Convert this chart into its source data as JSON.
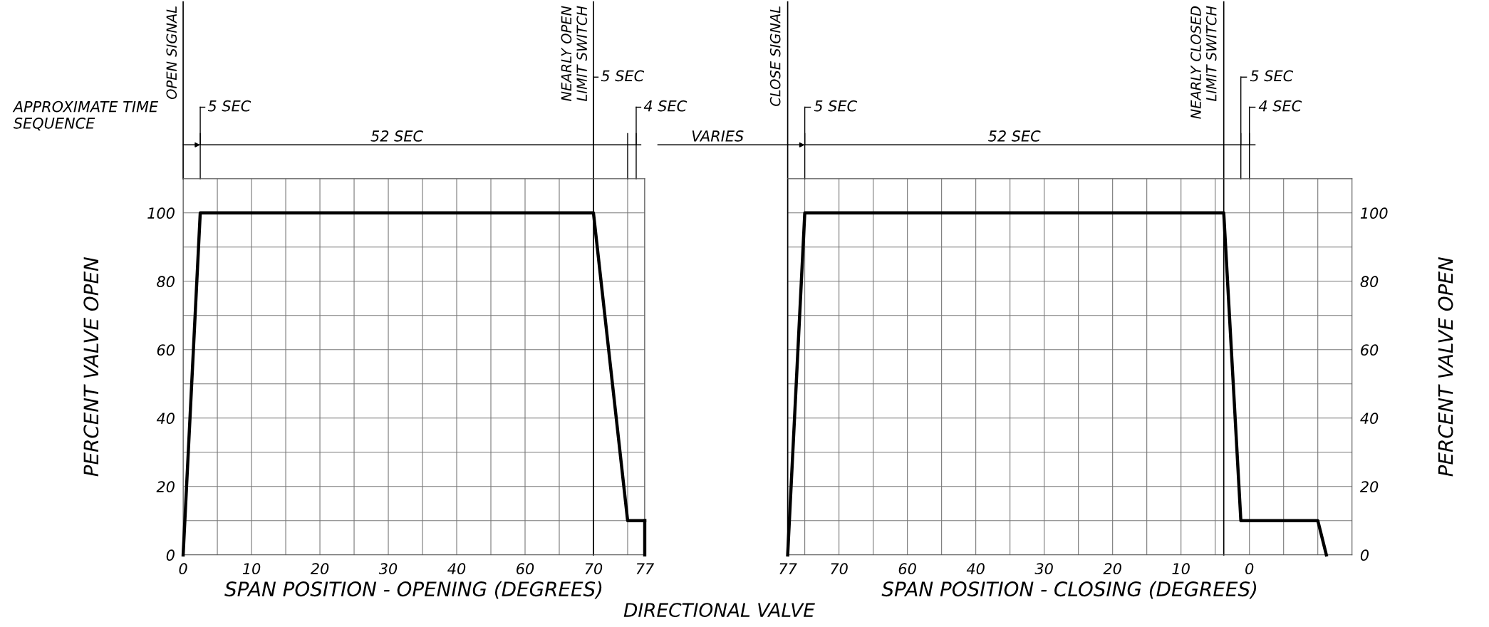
{
  "chart_data": [
    {
      "type": "line",
      "xlabel": "SPAN POSITION - OPENING (DEGREES)",
      "ylabel": "PERCENT VALVE OPEN",
      "grid": true,
      "legend": false,
      "marker": "none",
      "line_style": "solid",
      "categories": [
        "0",
        null,
        null,
        null,
        null,
        null,
        null,
        null,
        "10",
        null,
        null,
        null,
        null,
        null,
        null,
        null,
        "20",
        null,
        null,
        null,
        null,
        null,
        null,
        null,
        "30",
        null,
        null,
        null,
        null,
        null,
        null,
        null,
        "40",
        null,
        null,
        null,
        null,
        null,
        null,
        null,
        "60",
        null,
        null,
        null,
        null,
        null,
        null,
        null,
        "70",
        null,
        null,
        null,
        null,
        null,
        "77"
      ],
      "ylim": [
        0,
        110
      ],
      "yticks": [
        0,
        {
          "value": 10,
          "label": null
        },
        20,
        {
          "value": 30,
          "label": null
        },
        40,
        {
          "value": 50,
          "label": null
        },
        60,
        {
          "value": 70,
          "label": null
        },
        80,
        {
          "value": 90,
          "label": null
        },
        100,
        {
          "value": 110,
          "label": null
        }
      ],
      "series": [
        {
          "color": "#000000",
          "values": [
            0,
            50,
            100,
            100,
            100,
            100,
            100,
            100,
            100,
            100,
            100,
            100,
            100,
            100,
            100,
            100,
            100,
            100,
            100,
            100,
            100,
            100,
            100,
            100,
            100,
            100,
            100,
            100,
            100,
            100,
            100,
            100,
            100,
            100,
            100,
            100,
            100,
            100,
            100,
            100,
            100,
            100,
            100,
            100,
            100,
            100,
            100,
            100,
            100,
            77.5,
            55,
            32.5,
            10,
            10,
            10
          ]
        },
        {
          "color": "#000000",
          "x": [
            "77",
            "77"
          ],
          "values": [
            10,
            0
          ]
        }
      ],
      "ref_lines": [
        {
          "axis": "x",
          "value": "70",
          "label": "NEARLY OPEN\nLIMIT SWITCH"
        }
      ],
      "annotations": [
        "5 SEC",
        "52 SEC",
        "5 SEC",
        "4 SEC",
        "APPROXIMATE TIME\nSEQUENCE",
        "DIRECTIONAL VALVE",
        "OPEN SIGNAL"
      ]
    },
    {
      "type": "line",
      "xlabel": "SPAN POSITION - CLOSING (DEGREES)",
      "ylabel": "PERCENT VALVE OPEN",
      "grid": true,
      "legend": false,
      "marker": "none",
      "line_style": "solid",
      "categories": [
        "77",
        null,
        null,
        null,
        null,
        null,
        "70",
        null,
        null,
        null,
        null,
        null,
        null,
        null,
        "60",
        null,
        null,
        null,
        null,
        null,
        null,
        null,
        "40",
        null,
        null,
        null,
        null,
        null,
        null,
        null,
        "30",
        null,
        null,
        null,
        null,
        null,
        null,
        null,
        "20",
        null,
        null,
        null,
        null,
        null,
        null,
        null,
        "10",
        null,
        null,
        null,
        null,
        null,
        null,
        null,
        "0",
        null,
        null,
        null,
        null,
        null,
        null,
        null,
        null,
        null,
        null,
        null,
        null
      ],
      "ylim": [
        0,
        110
      ],
      "yticks": [
        0,
        {
          "value": 10,
          "label": null
        },
        20,
        {
          "value": 30,
          "label": null
        },
        40,
        {
          "value": 50,
          "label": null
        },
        60,
        {
          "value": 70,
          "label": null
        },
        80,
        {
          "value": 90,
          "label": null
        },
        100,
        {
          "value": 110,
          "label": null
        }
      ],
      "series": [
        {
          "color": "#000000",
          "values": [
            0,
            50,
            100,
            100,
            100,
            100,
            100,
            100,
            100,
            100,
            100,
            100,
            100,
            100,
            100,
            100,
            100,
            100,
            100,
            100,
            100,
            100,
            100,
            100,
            100,
            100,
            100,
            100,
            100,
            100,
            100,
            100,
            100,
            100,
            100,
            100,
            100,
            100,
            100,
            100,
            100,
            100,
            100,
            100,
            100,
            100,
            100,
            100,
            100,
            100,
            100,
            100,
            55,
            10,
            10,
            10,
            10,
            10,
            10,
            10,
            10,
            10,
            10,
            0,
            null,
            null,
            null
          ]
        }
      ],
      "ref_lines": [
        {
          "axis": "x",
          "value": "77",
          "label": "CLOSE SIGNAL"
        }
      ],
      "annotations": [
        "5 SEC",
        "52 SEC",
        "5 SEC",
        "4 SEC",
        "VARIES",
        "NEARLY CLOSED\nLIMIT SWITCH"
      ]
    }
  ]
}
